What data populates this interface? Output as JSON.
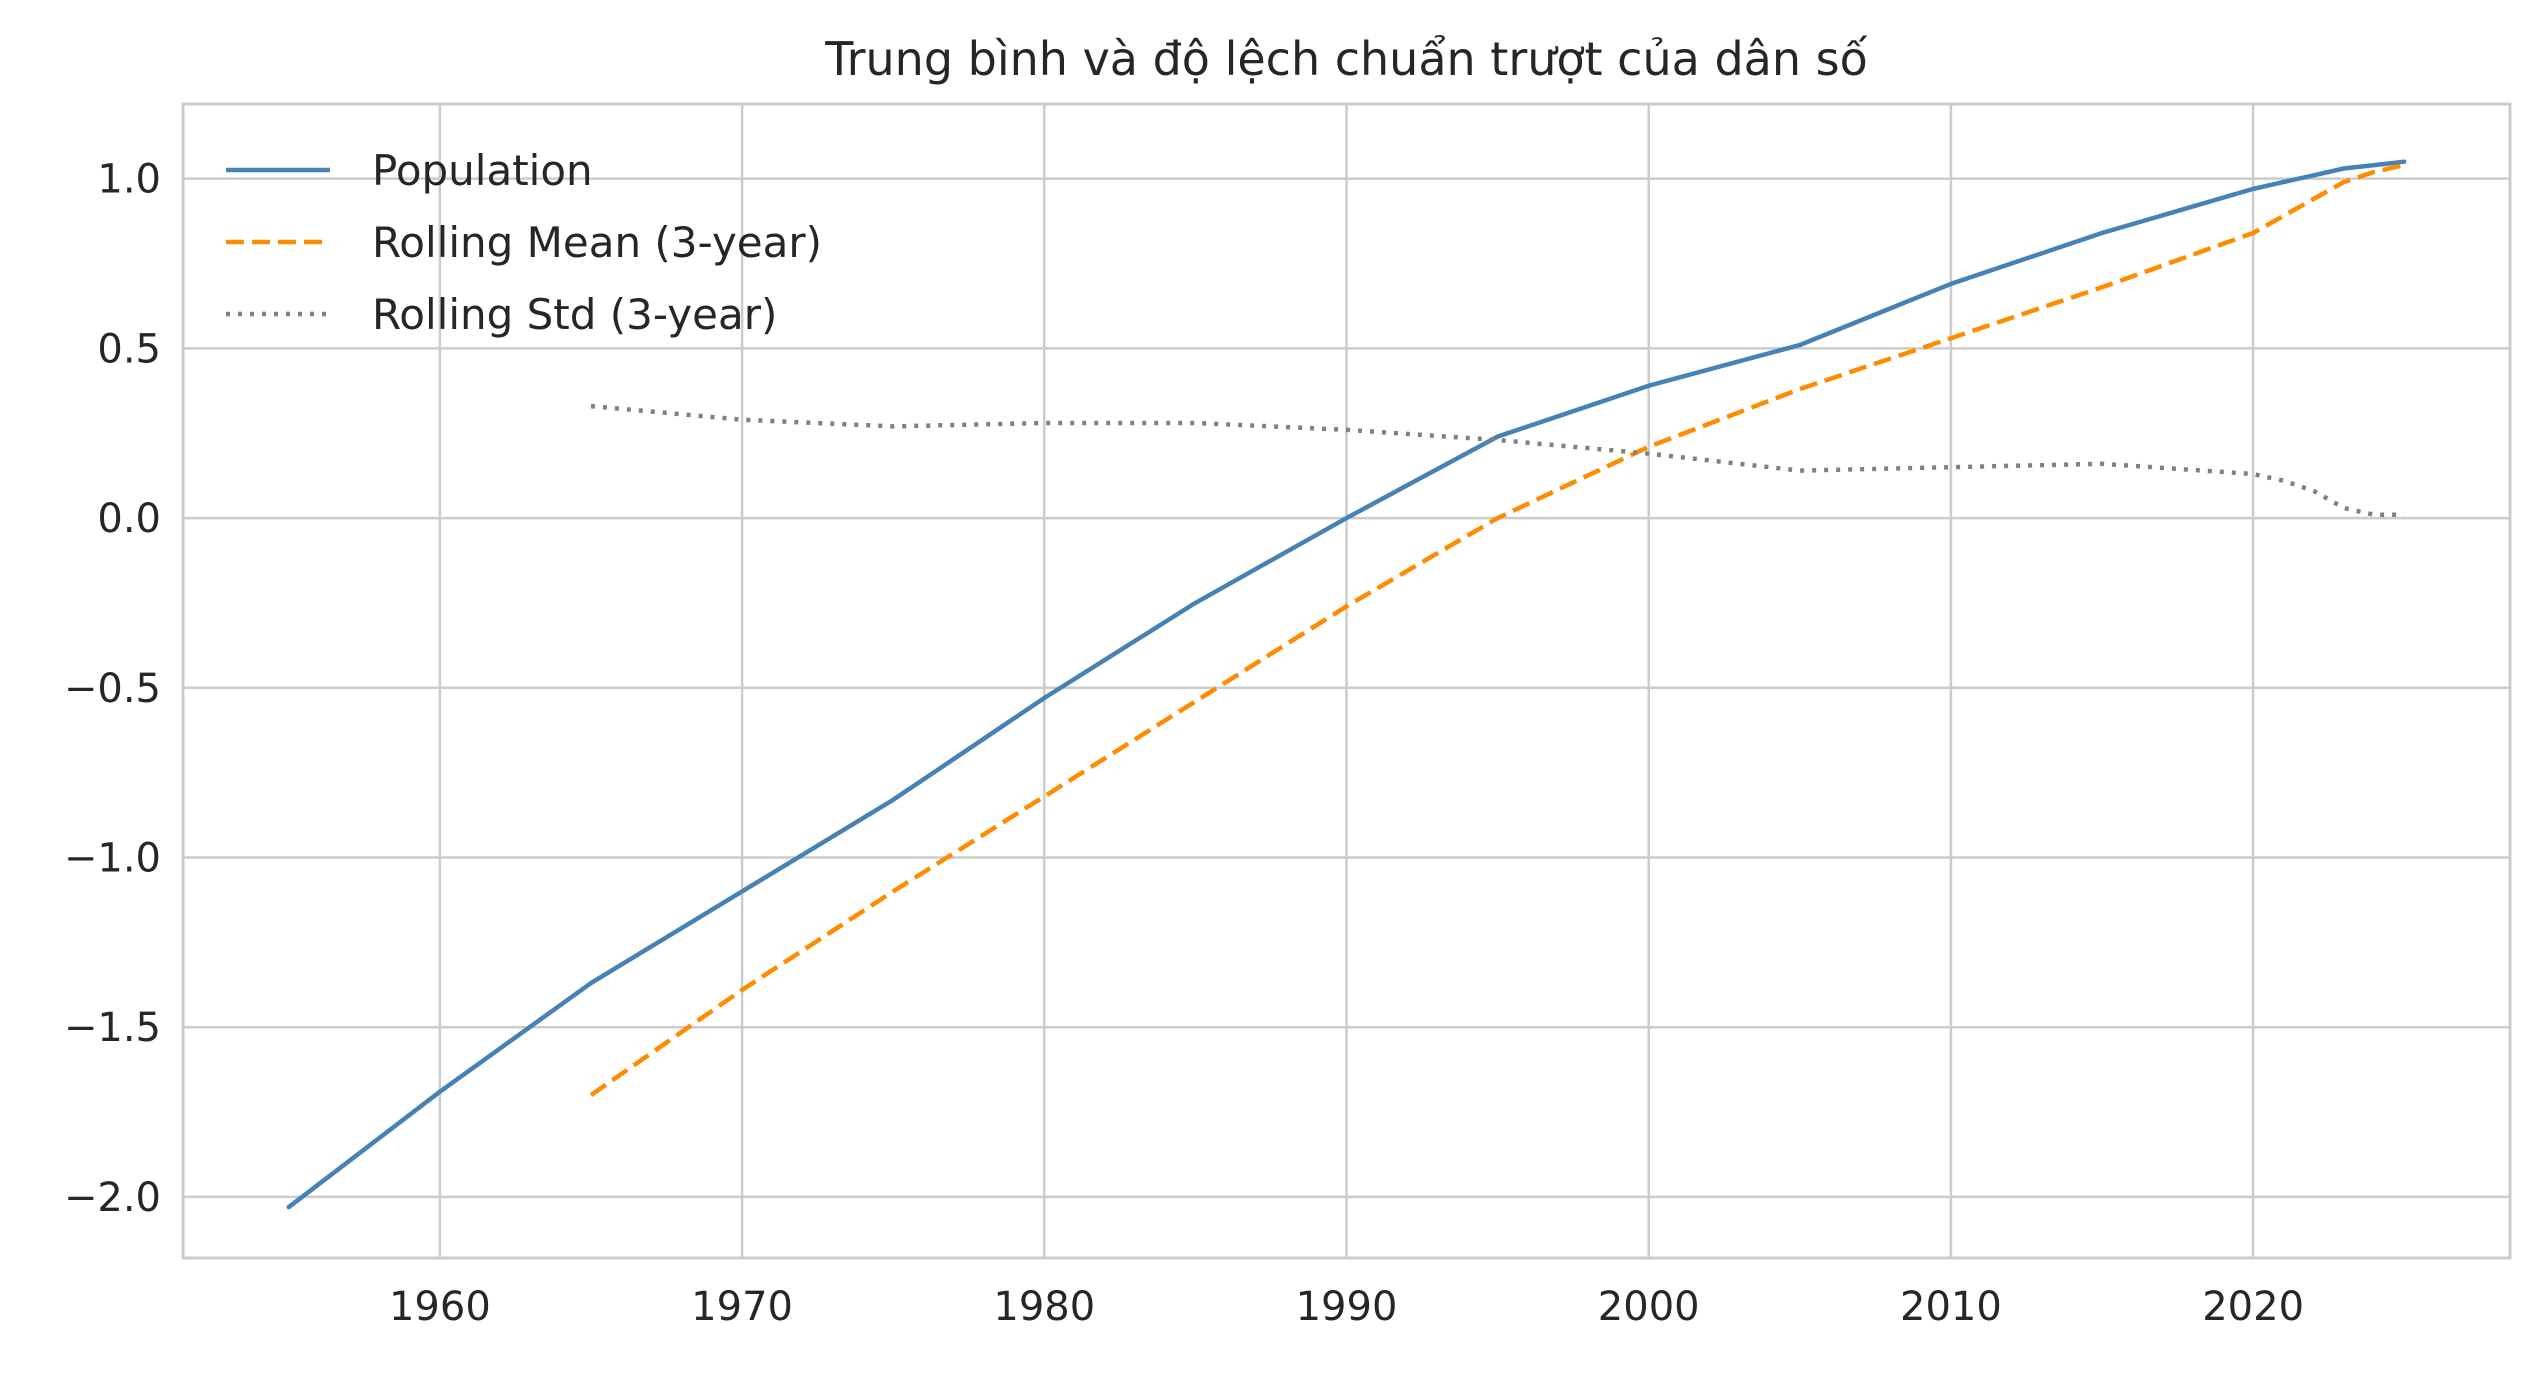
{
  "chart_data": {
    "type": "line",
    "title": "Trung bình và độ lệch chuẩn trượt của dân số",
    "xlabel": "",
    "ylabel": "",
    "xlim": [
      1951.5,
      2028.5
    ],
    "ylim": [
      -2.18,
      1.22
    ],
    "x_ticks": [
      1960,
      1970,
      1980,
      1990,
      2000,
      2010,
      2020
    ],
    "x_tick_labels": [
      "1960",
      "1970",
      "1980",
      "1990",
      "2000",
      "2010",
      "2020"
    ],
    "y_ticks": [
      1.0,
      0.5,
      0.0,
      -0.5,
      -1.0,
      -1.5,
      -2.0
    ],
    "y_tick_labels": [
      "1.0",
      "0.5",
      "0.0",
      "−0.5",
      "−1.0",
      "−1.5",
      "−2.0"
    ],
    "grid": true,
    "legend_position": "upper-left",
    "series": [
      {
        "name": "Population",
        "color": "#4682b4",
        "style": "solid",
        "x": [
          1955,
          1960,
          1965,
          1970,
          1975,
          1980,
          1985,
          1990,
          1995,
          2000,
          2005,
          2010,
          2015,
          2020,
          2021,
          2022,
          2023,
          2024,
          2025
        ],
        "values": [
          -2.03,
          -1.69,
          -1.37,
          -1.1,
          -0.83,
          -0.53,
          -0.25,
          0.0,
          0.24,
          0.39,
          0.51,
          0.69,
          0.84,
          0.97,
          0.99,
          1.01,
          1.03,
          1.04,
          1.05
        ]
      },
      {
        "name": "Rolling Mean (3-year)",
        "color": "#ff8c00",
        "style": "dashed",
        "x": [
          1965,
          1970,
          1975,
          1980,
          1985,
          1990,
          1995,
          2000,
          2005,
          2010,
          2015,
          2020,
          2021,
          2022,
          2023,
          2024,
          2025
        ],
        "values": [
          -1.7,
          -1.39,
          -1.1,
          -0.82,
          -0.54,
          -0.26,
          0.0,
          0.21,
          0.38,
          0.53,
          0.68,
          0.84,
          0.89,
          0.94,
          0.99,
          1.02,
          1.04
        ]
      },
      {
        "name": "Rolling Std (3-year)",
        "color": "#808080",
        "style": "dotted",
        "x": [
          1965,
          1970,
          1975,
          1980,
          1985,
          1990,
          1995,
          2000,
          2005,
          2010,
          2015,
          2020,
          2021,
          2022,
          2023,
          2024,
          2025
        ],
        "values": [
          0.33,
          0.29,
          0.27,
          0.28,
          0.28,
          0.26,
          0.23,
          0.19,
          0.14,
          0.15,
          0.16,
          0.13,
          0.11,
          0.08,
          0.03,
          0.01,
          0.01
        ]
      }
    ]
  }
}
